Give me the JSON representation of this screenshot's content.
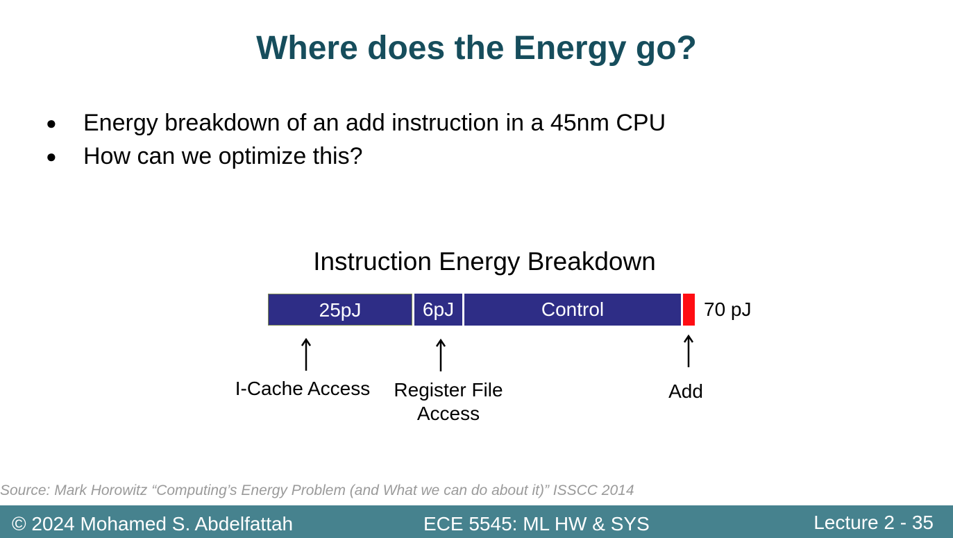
{
  "slide": {
    "title": "Where does the Energy go?",
    "bullets": [
      {
        "marker": "●",
        "text": "Energy breakdown of an add instruction in a 45nm CPU"
      },
      {
        "marker": "●",
        "text": "How can we optimize this?"
      }
    ]
  },
  "diagram": {
    "title": "Instruction Energy Breakdown",
    "segments": [
      {
        "label": "25pJ",
        "color": "#2e2d86"
      },
      {
        "label": "6pJ",
        "color": "#2e2d86"
      },
      {
        "label": "Control",
        "color": "#2e2d86"
      },
      {
        "label": "",
        "color": "#ff0d13"
      }
    ],
    "total_label": "70 pJ",
    "callouts": [
      {
        "arrow": "up-arrow-icon",
        "line1": "I-Cache Access",
        "line2": ""
      },
      {
        "arrow": "up-arrow-icon",
        "line1": "Register File",
        "line2": "Access"
      },
      {
        "arrow": "up-arrow-icon",
        "line1": "Add",
        "line2": ""
      }
    ]
  },
  "source": "Source: Mark Horowitz “Computing’s Energy Problem (and What we can do about it)” ISSCC 2014",
  "footer": {
    "left": "© 2024 Mohamed S. Abdelfattah",
    "center": "ECE 5545: ML HW & SYS",
    "right": "Lecture 2 - 35"
  },
  "colors": {
    "title": "#164d5c",
    "bar": "#2e2d86",
    "add": "#ff0d13",
    "footer_bg": "#46828e",
    "source_text": "#9a9a9a"
  }
}
